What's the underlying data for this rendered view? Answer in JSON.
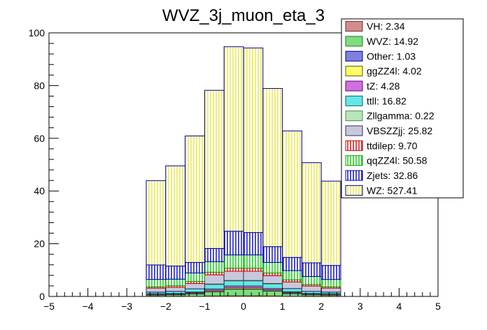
{
  "chart_data": {
    "type": "bar",
    "subtype": "stacked-histogram",
    "title": "WVZ_3j_muon_eta_3",
    "xlabel": "",
    "ylabel": "",
    "xlim": [
      -5,
      5
    ],
    "ylim": [
      0,
      100
    ],
    "xticks": [
      "−5",
      "−4",
      "−3",
      "−2",
      "−1",
      "0",
      "1",
      "2",
      "3",
      "4",
      "5"
    ],
    "yticks": [
      "0",
      "20",
      "40",
      "60",
      "80",
      "100"
    ],
    "bin_edges": [
      -2.5,
      -2.0,
      -1.5,
      -1.0,
      -0.5,
      0.0,
      0.5,
      1.0,
      1.5,
      2.0,
      2.5
    ],
    "stack_order": "bottom-to-top",
    "series": [
      {
        "name": "VH",
        "fill": "#d48c8c",
        "line": "#6b2a2a",
        "pattern": "diag-cross",
        "values": [
          0.1,
          0.1,
          0.15,
          0.25,
          0.3,
          0.3,
          0.25,
          0.15,
          0.1,
          0.1
        ]
      },
      {
        "name": "WVZ",
        "fill": "#7fdc7f",
        "line": "#1f7a1f",
        "pattern": "diag-cross",
        "values": [
          0.5,
          0.6,
          0.9,
          1.6,
          2.5,
          2.5,
          1.8,
          1.0,
          0.6,
          0.5
        ]
      },
      {
        "name": "Other",
        "fill": "#8080dc",
        "line": "#000090",
        "pattern": "diag-cross",
        "values": [
          0.05,
          0.05,
          0.05,
          0.1,
          0.1,
          0.1,
          0.1,
          0.05,
          0.05,
          0.05
        ]
      },
      {
        "name": "ggZZ4l",
        "fill": "#ffff66",
        "line": "#5a5a00",
        "pattern": "diag-cross",
        "values": [
          0.2,
          0.2,
          0.3,
          0.4,
          0.5,
          0.5,
          0.4,
          0.3,
          0.2,
          0.2
        ]
      },
      {
        "name": "tZ",
        "fill": "#d070e0",
        "line": "#6a006a",
        "pattern": "solid",
        "values": [
          0.2,
          0.2,
          0.3,
          0.5,
          0.6,
          0.6,
          0.5,
          0.3,
          0.2,
          0.2
        ]
      },
      {
        "name": "ttll",
        "fill": "#66e6e6",
        "line": "#006666",
        "pattern": "solid",
        "values": [
          0.6,
          0.8,
          1.2,
          1.8,
          2.0,
          2.0,
          1.8,
          1.2,
          0.8,
          0.6
        ]
      },
      {
        "name": "Zllgamma",
        "fill": "#b8e6b8",
        "line": "#4a8a4a",
        "pattern": "solid",
        "values": [
          0.0,
          0.0,
          0.0,
          0.05,
          0.05,
          0.05,
          0.05,
          0.0,
          0.0,
          0.0
        ]
      },
      {
        "name": "VBSZZjj",
        "fill": "#c8c8dc",
        "line": "#30305a",
        "pattern": "diag-cross",
        "values": [
          1.5,
          1.5,
          2.0,
          3.5,
          3.5,
          3.5,
          3.0,
          2.5,
          2.0,
          1.5
        ]
      },
      {
        "name": "ttdilep",
        "fill": "#ffffff",
        "line": "#cc0000",
        "pattern": "vert-lines-red",
        "values": [
          0.5,
          0.6,
          0.8,
          1.0,
          1.2,
          1.2,
          1.0,
          0.8,
          0.6,
          0.5
        ]
      },
      {
        "name": "qqZZ4l",
        "fill": "#ffffff",
        "line": "#00a000",
        "pattern": "vert-lines-green",
        "values": [
          2.8,
          2.5,
          3.2,
          4.0,
          5.0,
          5.0,
          4.0,
          3.5,
          3.0,
          2.8
        ]
      },
      {
        "name": "Zjets",
        "fill": "#ffffff",
        "line": "#000099",
        "pattern": "vert-lines-blue",
        "values": [
          5.5,
          5.0,
          4.0,
          5.0,
          9.0,
          8.5,
          6.0,
          5.0,
          5.2,
          5.3
        ]
      },
      {
        "name": "WZ",
        "fill": "#ffff99",
        "line": "#000099",
        "pattern": "vert-lines-yellow",
        "values": [
          32.0,
          38.0,
          48.0,
          60.0,
          70.0,
          70.0,
          60.0,
          48.0,
          38.0,
          32.0
        ]
      }
    ],
    "legend": {
      "placement": "top-right",
      "entries": [
        "VH: 2.34",
        "WVZ: 14.92",
        "Other: 1.03",
        "ggZZ4l: 4.02",
        "tZ: 4.28",
        "ttll: 16.82",
        "Zllgamma: 0.22",
        "VBSZZjj: 25.82",
        "ttdilep: 9.70",
        "qqZZ4l: 50.58",
        "Zjets: 32.86",
        "WZ: 527.41"
      ]
    }
  }
}
